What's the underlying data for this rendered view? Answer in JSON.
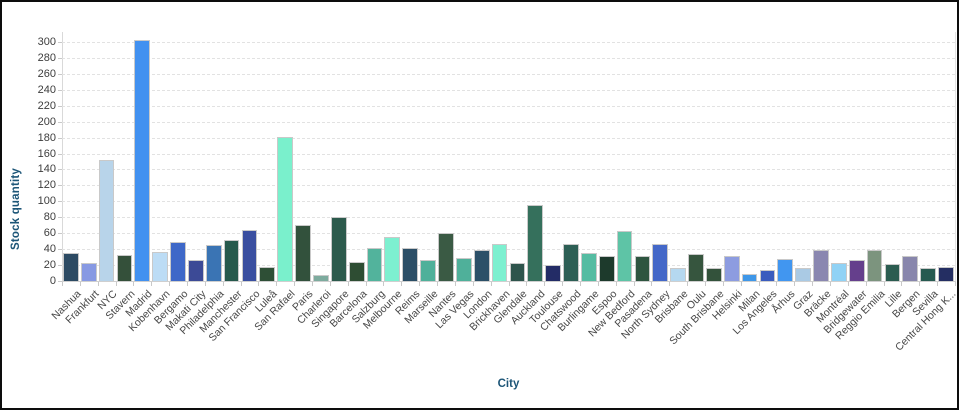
{
  "chart_data": {
    "type": "bar",
    "title": "",
    "xlabel": "City",
    "ylabel": "Stock quantity",
    "ylim": [
      0,
      300
    ],
    "ytick_step": 20,
    "grid": "dashed-horizontal",
    "legend": "none",
    "categories": [
      "Nashua",
      "Frankfurt",
      "NYC",
      "Stavern",
      "Madrid",
      "Kobenhavn",
      "Bergamo",
      "Makati City",
      "Philadelphia",
      "Manchester",
      "San Francisco",
      "Luleå",
      "San Rafael",
      "Paris",
      "Charleroi",
      "Singapore",
      "Barcelona",
      "Salzburg",
      "Melbourne",
      "Reims",
      "Marseille",
      "Nantes",
      "Las Vegas",
      "London",
      "Brickhaven",
      "Glendale",
      "Auckland",
      "Toulouse",
      "Chatswood",
      "Burlingame",
      "Espoo",
      "New Bedford",
      "Pasadena",
      "North Sydney",
      "Brisbane",
      "Oulu",
      "South Brisbane",
      "Helsinki",
      "Milan",
      "Los Angeles",
      "Århus",
      "Graz",
      "Bräcke",
      "Montréal",
      "Bridgewater",
      "Reggio Emilia",
      "Lille",
      "Bergen",
      "Sevilla",
      "Central Hong K..."
    ],
    "values": [
      35,
      22,
      152,
      33,
      302,
      37,
      49,
      26,
      45,
      52,
      64,
      18,
      181,
      70,
      8,
      80,
      24,
      41,
      55,
      41,
      26,
      60,
      29,
      39,
      47,
      22,
      95,
      20,
      47,
      35,
      31,
      63,
      32,
      47,
      16,
      34,
      16,
      32,
      9,
      14,
      28,
      16,
      39,
      23,
      26,
      39,
      21,
      31,
      16,
      18
    ],
    "colors": [
      "#2c4a63",
      "#8799e3",
      "#b8d4ea",
      "#34503a",
      "#4291f0",
      "#bcdcf5",
      "#3e68c8",
      "#3c4a96",
      "#3a74b4",
      "#26594c",
      "#3a4fa0",
      "#2e4f36",
      "#7af0cc",
      "#32513c",
      "#7dab9e",
      "#2c5a4c",
      "#2e4d33",
      "#52b39c",
      "#7df0d0",
      "#2b4e66",
      "#4fb09a",
      "#3a5a44",
      "#4fb09a",
      "#2c5068",
      "#7df0d0",
      "#2e544c",
      "#35705c",
      "#232c66",
      "#2d5f55",
      "#55bca2",
      "#1d3a2c",
      "#5ec4a6",
      "#2e5540",
      "#4468c8",
      "#b5d8f0",
      "#36553e",
      "#33523b",
      "#8d9ce0",
      "#3f97e8",
      "#3a5cbe",
      "#4196f0",
      "#aacae4",
      "#8a87b0",
      "#90d2f5",
      "#653f8c",
      "#7c947e",
      "#2b5c50",
      "#8886ac",
      "#275a50",
      "#242e62"
    ],
    "axis_title_color": "#1c5577",
    "tick_label_color": "#3d3d3d",
    "gridline_color": "#e2e2e2",
    "bar_border_color": "#c9c9c9"
  }
}
